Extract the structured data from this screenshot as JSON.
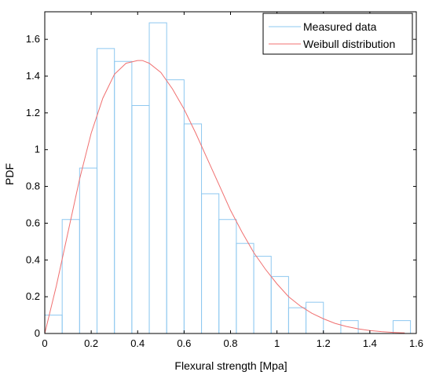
{
  "chart_data": {
    "type": "bar",
    "xlabel": "Flexural strength [Mpa]",
    "ylabel": "PDF",
    "xlim": [
      0,
      1.6
    ],
    "ylim": [
      0,
      1.75
    ],
    "grid": false,
    "legend_position": "top-right",
    "x_ticks": [
      "0",
      "0.2",
      "0.4",
      "0.6",
      "0.8",
      "1",
      "1.2",
      "1.4",
      "1.6"
    ],
    "y_ticks": [
      "0",
      "0.2",
      "0.4",
      "0.6",
      "0.8",
      "1",
      "1.2",
      "1.4",
      "1.6"
    ],
    "histogram": {
      "name": "Measured data",
      "color": "#8ec8f0",
      "bin_edges": [
        0,
        0.075,
        0.15,
        0.225,
        0.3,
        0.375,
        0.45,
        0.525,
        0.6,
        0.675,
        0.75,
        0.825,
        0.9,
        0.975,
        1.05,
        1.125,
        1.2,
        1.275,
        1.35,
        1.425,
        1.5,
        1.575
      ],
      "values": [
        0.1,
        0.62,
        0.9,
        1.55,
        1.48,
        1.24,
        1.69,
        1.38,
        1.14,
        0.76,
        0.62,
        0.49,
        0.42,
        0.31,
        0.14,
        0.17,
        0.0,
        0.07,
        0.0,
        0.0,
        0.07
      ]
    },
    "curve": {
      "name": "Weibull distribution",
      "color": "#f07070",
      "x": [
        0,
        0.05,
        0.1,
        0.15,
        0.2,
        0.25,
        0.3,
        0.35,
        0.4,
        0.42,
        0.45,
        0.5,
        0.55,
        0.6,
        0.65,
        0.7,
        0.75,
        0.8,
        0.85,
        0.9,
        0.95,
        1.0,
        1.05,
        1.1,
        1.15,
        1.2,
        1.25,
        1.3,
        1.35,
        1.4,
        1.45,
        1.5,
        1.55
      ],
      "y": [
        0.0,
        0.26,
        0.55,
        0.84,
        1.09,
        1.28,
        1.41,
        1.47,
        1.485,
        1.485,
        1.47,
        1.42,
        1.33,
        1.22,
        1.09,
        0.95,
        0.81,
        0.67,
        0.55,
        0.44,
        0.35,
        0.27,
        0.2,
        0.15,
        0.11,
        0.08,
        0.055,
        0.038,
        0.025,
        0.016,
        0.01,
        0.006,
        0.003
      ]
    }
  }
}
